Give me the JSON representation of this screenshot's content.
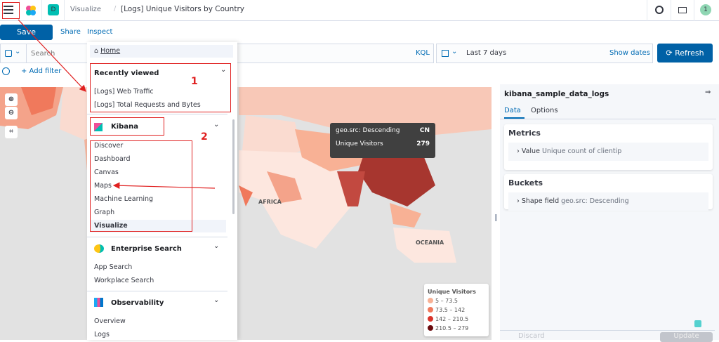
{
  "header": {
    "breadcrumb_parent": "Visualize",
    "breadcrumb_current": "[Logs] Unique Visitors by Country",
    "space_badge": "D",
    "avatar": "1"
  },
  "toolbar": {
    "save": "Save",
    "share": "Share",
    "inspect": "Inspect"
  },
  "query": {
    "placeholder": "Search",
    "language": "KQL",
    "time_range": "Last 7 days",
    "show_dates": "Show dates",
    "refresh": "Refresh",
    "add_filter": "+ Add filter"
  },
  "nav": {
    "home": "Home",
    "recently_viewed": {
      "title": "Recently viewed",
      "items": [
        "[Logs] Web Traffic",
        "[Logs] Total Requests and Bytes"
      ]
    },
    "kibana": {
      "title": "Kibana",
      "items": [
        "Discover",
        "Dashboard",
        "Canvas",
        "Maps",
        "Machine Learning",
        "Graph",
        "Visualize"
      ]
    },
    "enterprise": {
      "title": "Enterprise Search",
      "items": [
        "App Search",
        "Workplace Search"
      ]
    },
    "observability": {
      "title": "Observability",
      "items": [
        "Overview",
        "Logs"
      ]
    }
  },
  "annotations": {
    "box1": "1",
    "box2": "2"
  },
  "map": {
    "labels": {
      "africa": "AFRICA",
      "oceania": "OCEANIA"
    },
    "tooltip": {
      "field_label": "geo.src: Descending",
      "field_value": "CN",
      "metric_label": "Unique Visitors",
      "metric_value": "279"
    },
    "legend": {
      "title": "Unique Visitors",
      "ranges": [
        {
          "label": "5 – 73.5",
          "color": "#f8b195"
        },
        {
          "label": "73.5 – 142",
          "color": "#f0795c"
        },
        {
          "label": "142 – 210.5",
          "color": "#d9342b"
        },
        {
          "label": "210.5 – 279",
          "color": "#6a0b0e"
        }
      ]
    }
  },
  "sidebar": {
    "index": "kibana_sample_data_logs",
    "tabs": [
      "Data",
      "Options"
    ],
    "metrics_title": "Metrics",
    "metric_label": "Value",
    "metric_desc": "Unique count of clientip",
    "buckets_title": "Buckets",
    "bucket_label": "Shape field",
    "bucket_desc": "geo.src: Descending",
    "discard": "Discard",
    "update": "Update"
  }
}
